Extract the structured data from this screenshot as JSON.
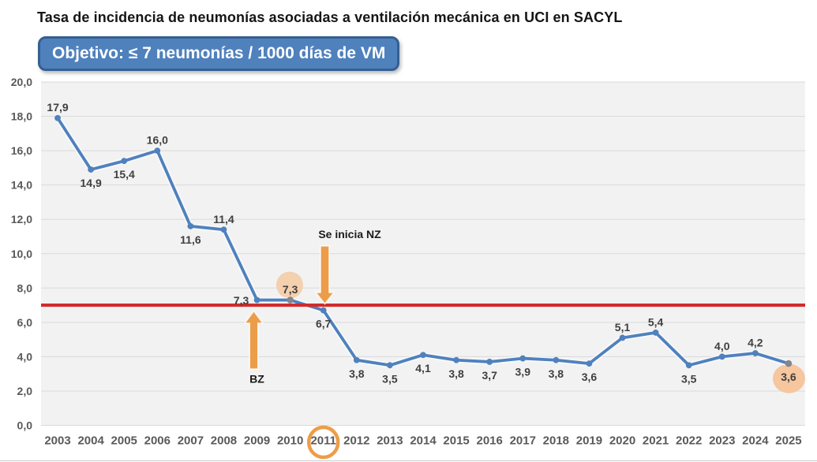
{
  "title": "Tasa de incidencia de neumonías asociadas a ventilación mecánica en UCI en SACYL",
  "objective": {
    "label": "Objetivo: ≤ 7 neumonías / 1000 días de VM"
  },
  "chart_data": {
    "type": "line",
    "title": "Tasa de incidencia de neumonías asociadas a ventilación mecánica en UCI en SACYL",
    "categories": [
      "2003",
      "2004",
      "2005",
      "2006",
      "2007",
      "2008",
      "2009",
      "2010",
      "2011",
      "2012",
      "2013",
      "2014",
      "2015",
      "2016",
      "2017",
      "2018",
      "2019",
      "2020",
      "2021",
      "2022",
      "2023",
      "2024",
      "2025"
    ],
    "values": [
      17.9,
      14.9,
      15.4,
      16.0,
      11.6,
      11.4,
      7.3,
      7.3,
      6.7,
      3.8,
      3.5,
      4.1,
      3.8,
      3.7,
      3.9,
      3.8,
      3.6,
      5.1,
      5.4,
      3.5,
      4.0,
      4.2,
      3.6
    ],
    "point_labels": [
      "17,9",
      "14,9",
      "15,4",
      "16,0",
      "11,6",
      "11,4",
      "7,3",
      "7,3",
      "6,7",
      "3,8",
      "3,5",
      "4,1",
      "3,8",
      "3,7",
      "3,9",
      "3,8",
      "3,6",
      "5,1",
      "5,4",
      "3,5",
      "4,0",
      "4,2",
      "3,6"
    ],
    "label_placement": [
      "above",
      "below",
      "below",
      "above",
      "below",
      "above",
      "left",
      "above",
      "below",
      "below",
      "below",
      "below",
      "below",
      "below",
      "below",
      "below",
      "below",
      "above",
      "above",
      "below",
      "above",
      "above",
      "below"
    ],
    "ylim": [
      0,
      20
    ],
    "ytick_step": 2,
    "ytick_labels": [
      "20,0",
      "18,0",
      "16,0",
      "14,0",
      "12,0",
      "10,0",
      "8,0",
      "6,0",
      "4,0",
      "2,0",
      "0,0"
    ],
    "xlabel": "",
    "ylabel": "",
    "grid": "horizontal",
    "legend": "none",
    "reference_line": {
      "value": 7.0,
      "meaning": "objetivo"
    },
    "highlight_points": [
      {
        "category": "2010",
        "label": "7,3",
        "marker": "gray",
        "circle": "peach"
      },
      {
        "category": "2025",
        "label": "3,6",
        "marker": "gray",
        "circle": "peach"
      }
    ],
    "circled_category": "2011",
    "annotations": [
      {
        "text": "BZ",
        "arrow": "up",
        "category": "2009"
      },
      {
        "text": "Se inicia NZ",
        "arrow": "down",
        "category": "2011"
      }
    ]
  },
  "colors": {
    "line": "#4f81bd",
    "marker": "#4f81bd",
    "marker_highlight": "#85858e",
    "reference_line": "#d22b2b",
    "arrow": "#ec9d49",
    "category_ring": "#ec9d49",
    "highlight_circle_2010": "#f4d0ae",
    "highlight_circle_2025": "#f6c69e",
    "plot_bg": "#f2f2f2",
    "gridline": "#dadada",
    "axis_label": "#595959",
    "data_label": "#3f3f3f",
    "annotation_label": "#1a1a1a",
    "objective_bg": "#4f81bd",
    "objective_border": "#365f91",
    "title_color": "#151515"
  }
}
